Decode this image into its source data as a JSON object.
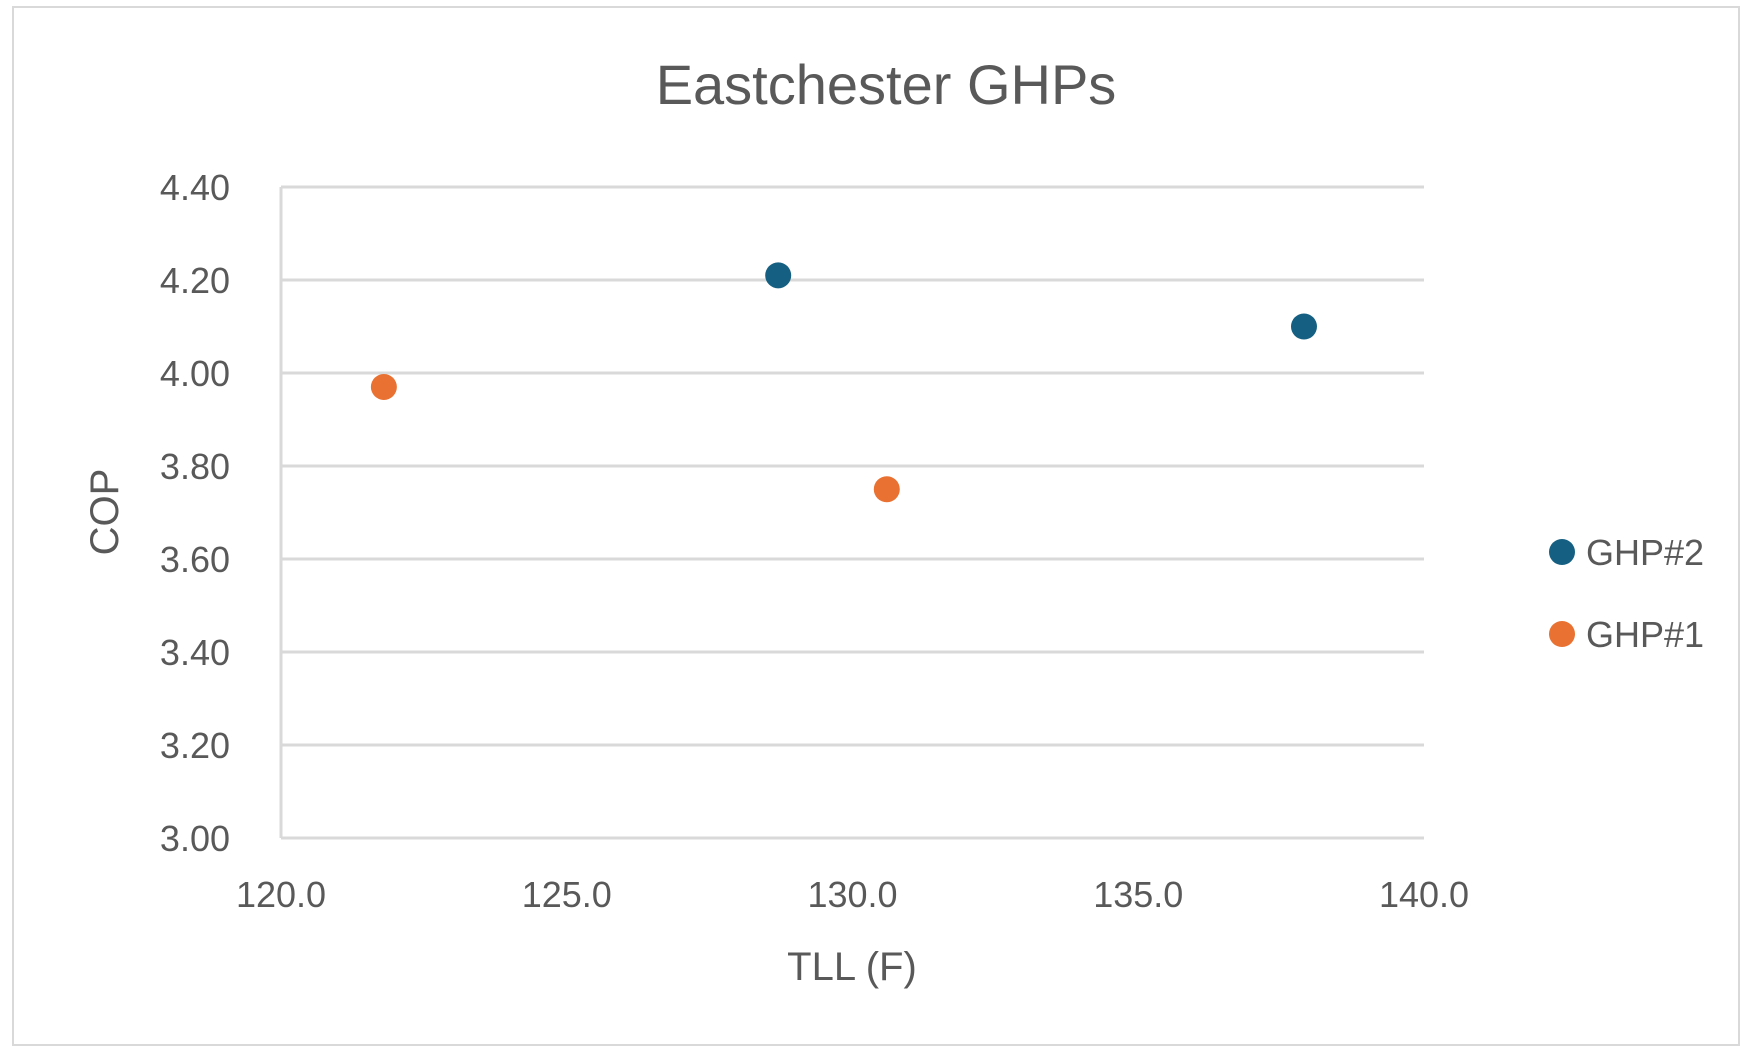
{
  "chart_data": {
    "type": "scatter",
    "title": "Eastchester GHPs",
    "xlabel": "TLL (F)",
    "ylabel": "COP",
    "xlim": [
      120,
      140
    ],
    "ylim": [
      3.0,
      4.4
    ],
    "x_ticks": [
      "120.0",
      "125.0",
      "130.0",
      "135.0",
      "140.0"
    ],
    "y_ticks": [
      "3.00",
      "3.20",
      "3.40",
      "3.60",
      "3.80",
      "4.00",
      "4.20",
      "4.40"
    ],
    "grid": true,
    "legend_position": "right",
    "series": [
      {
        "name": "GHP#2",
        "color": "#156082",
        "points": [
          {
            "x": 128.7,
            "y": 4.21
          },
          {
            "x": 137.9,
            "y": 4.1
          }
        ]
      },
      {
        "name": "GHP#1",
        "color": "#E97132",
        "points": [
          {
            "x": 121.8,
            "y": 3.97
          },
          {
            "x": 130.6,
            "y": 3.75
          }
        ]
      }
    ]
  }
}
